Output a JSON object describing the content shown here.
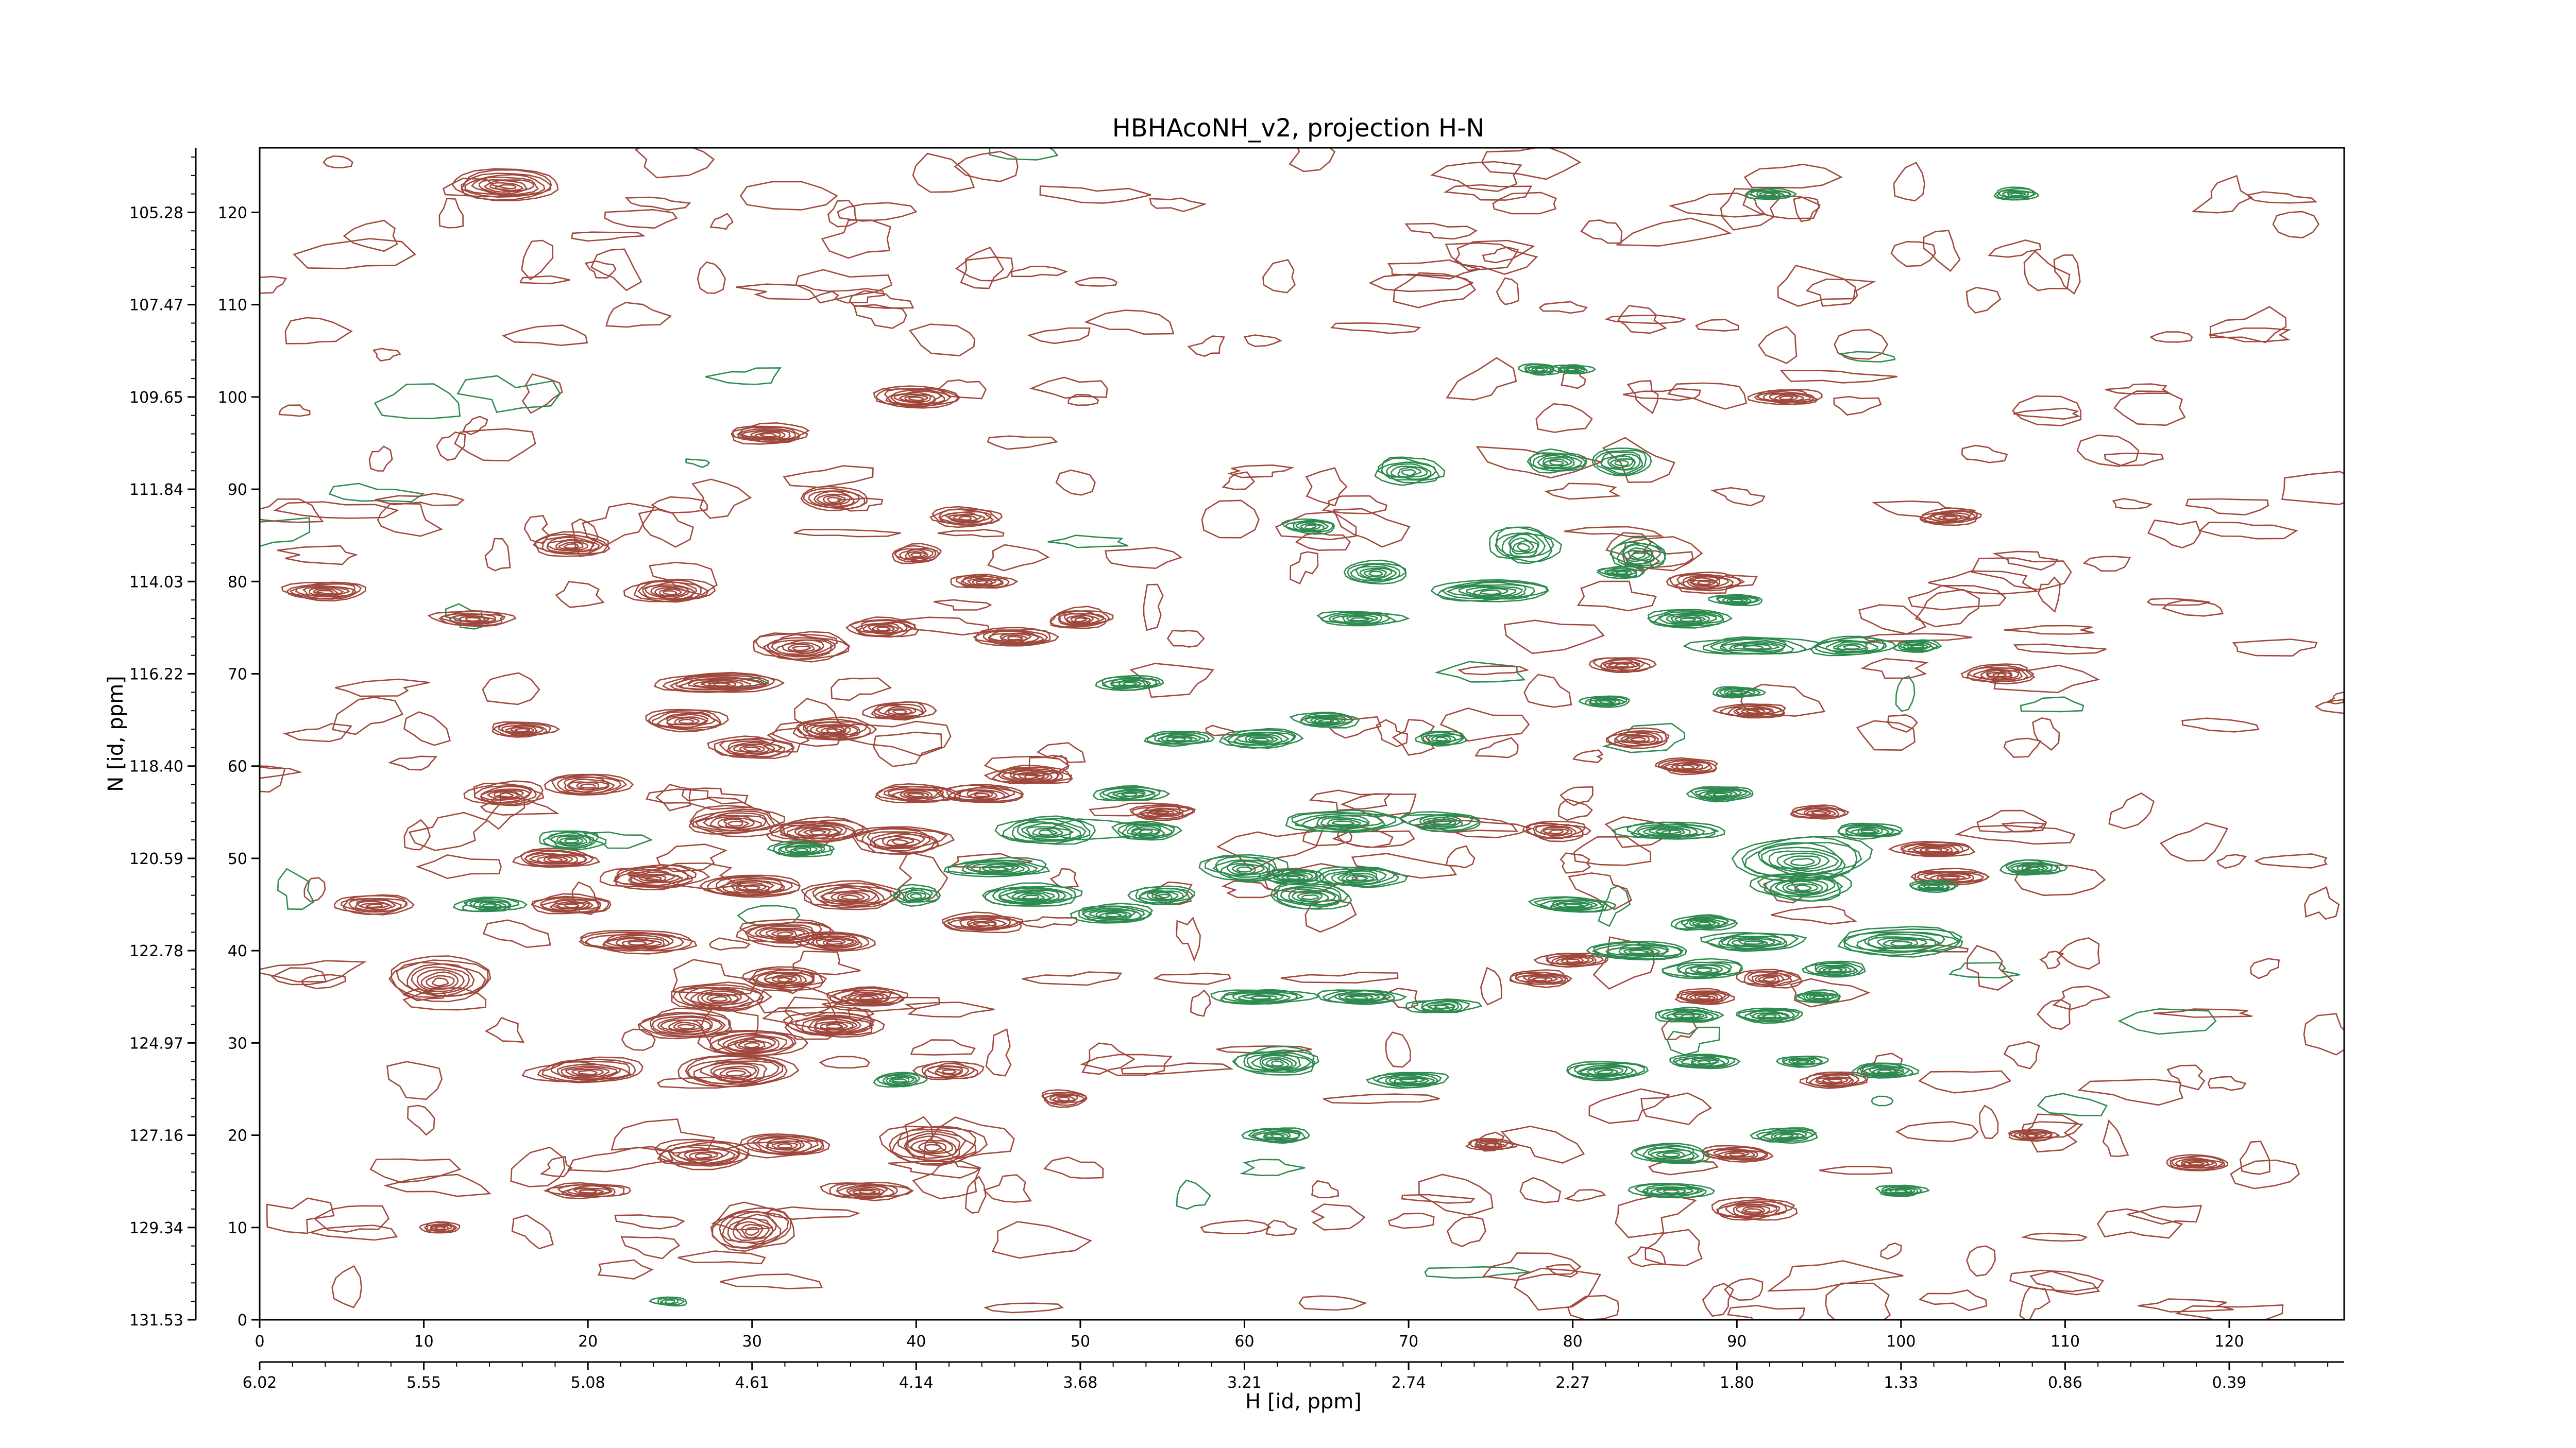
{
  "chart_data": {
    "type": "contour",
    "title": "HBHAcoNH_v2, projection H-N",
    "xlabel": "H [id, ppm]",
    "ylabel": "N [id, ppm]",
    "x_index_range": [
      0,
      127
    ],
    "y_index_range": [
      0,
      127
    ],
    "x_index_ticks": [
      "0",
      "10",
      "20",
      "30",
      "40",
      "50",
      "60",
      "70",
      "80",
      "90",
      "100",
      "110",
      "120"
    ],
    "y_index_ticks": [
      "0",
      "10",
      "20",
      "30",
      "40",
      "50",
      "60",
      "70",
      "80",
      "90",
      "100",
      "110",
      "120"
    ],
    "h_ppm_ticks": [
      "6.02",
      "5.55",
      "5.08",
      "4.61",
      "4.14",
      "3.68",
      "3.21",
      "2.74",
      "2.27",
      "1.80",
      "1.33",
      "0.86",
      "0.39"
    ],
    "n_ppm_ticks": [
      "131.53",
      "129.34",
      "127.16",
      "124.97",
      "122.78",
      "120.59",
      "118.40",
      "116.22",
      "114.03",
      "111.84",
      "109.65",
      "107.47",
      "105.28"
    ],
    "positive_color": "#a0483c",
    "negative_color": "#2e8b4f",
    "positive_peaks": [
      [
        15,
        123,
        3.5,
        1.6,
        9
      ],
      [
        40,
        100,
        2.5,
        1.2,
        9
      ],
      [
        31,
        96,
        2.5,
        1.0,
        8
      ],
      [
        35,
        89,
        2,
        1.3,
        7
      ],
      [
        19,
        84,
        2.5,
        1.2,
        8
      ],
      [
        43,
        87,
        2.2,
        1.0,
        8
      ],
      [
        40,
        83,
        1.5,
        1.0,
        7
      ],
      [
        44,
        80,
        1.8,
        0.8,
        7
      ],
      [
        4,
        79,
        2.5,
        1.0,
        8
      ],
      [
        25,
        79,
        2.5,
        1.3,
        9
      ],
      [
        13,
        76,
        2.5,
        0.8,
        7
      ],
      [
        33,
        73,
        3,
        1.5,
        9
      ],
      [
        28,
        69,
        4,
        1.0,
        9
      ],
      [
        38,
        75,
        2.2,
        1.0,
        8
      ],
      [
        46,
        74,
        2.5,
        1.0,
        8
      ],
      [
        50,
        76,
        2,
        1.0,
        8
      ],
      [
        16,
        64,
        2,
        0.8,
        7
      ],
      [
        26,
        65,
        2.5,
        1.2,
        8
      ],
      [
        30,
        62,
        2.5,
        1.2,
        8
      ],
      [
        35,
        64,
        2.5,
        1.2,
        8
      ],
      [
        39,
        66,
        2,
        1.0,
        7
      ],
      [
        15,
        57,
        2.5,
        1.2,
        8
      ],
      [
        20,
        58,
        2.5,
        1.2,
        8
      ],
      [
        29,
        54,
        3,
        1.5,
        9
      ],
      [
        34,
        53,
        3,
        1.3,
        9
      ],
      [
        39,
        52,
        3,
        1.5,
        9
      ],
      [
        40,
        57,
        2.5,
        1.0,
        8
      ],
      [
        44,
        57,
        2.5,
        1.0,
        8
      ],
      [
        47,
        59,
        2.5,
        1.0,
        8
      ],
      [
        18,
        50,
        2.5,
        1.0,
        8
      ],
      [
        7,
        45,
        2.5,
        1.0,
        8
      ],
      [
        24,
        48,
        3,
        1.3,
        9
      ],
      [
        19,
        45,
        2.5,
        1.0,
        8
      ],
      [
        23,
        41,
        3.5,
        1.2,
        9
      ],
      [
        30,
        47,
        3,
        1.2,
        9
      ],
      [
        36,
        46,
        3,
        1.5,
        9
      ],
      [
        44,
        43,
        2.5,
        1.0,
        8
      ],
      [
        32,
        42,
        3,
        1.3,
        9
      ],
      [
        35,
        41,
        2.5,
        1.0,
        8
      ],
      [
        11,
        37,
        3,
        2.5,
        9
      ],
      [
        28,
        35,
        3,
        1.5,
        9
      ],
      [
        32,
        37,
        2.5,
        1.2,
        8
      ],
      [
        37,
        35,
        2.5,
        1.0,
        8
      ],
      [
        26,
        32,
        3,
        1.5,
        9
      ],
      [
        30,
        30,
        3,
        1.5,
        9
      ],
      [
        35,
        32,
        3,
        1.3,
        9
      ],
      [
        29,
        27,
        3.5,
        1.8,
        9
      ],
      [
        20,
        27,
        3.5,
        1.3,
        9
      ],
      [
        42,
        27,
        2,
        1.0,
        7
      ],
      [
        49,
        24,
        1.5,
        0.8,
        6
      ],
      [
        27,
        18,
        3,
        1.5,
        9
      ],
      [
        32,
        19,
        2.5,
        1.2,
        8
      ],
      [
        41,
        19,
        3,
        2.2,
        9
      ],
      [
        20,
        14,
        2.5,
        0.8,
        7
      ],
      [
        37,
        14,
        2.5,
        1.0,
        8
      ],
      [
        30,
        10,
        2.5,
        2.5,
        9
      ],
      [
        11,
        10,
        1.2,
        0.6,
        6
      ],
      [
        55,
        55,
        2,
        0.8,
        7
      ],
      [
        79,
        53,
        2,
        1.0,
        7
      ],
      [
        84,
        63,
        2,
        1.0,
        7
      ],
      [
        87,
        60,
        2,
        0.8,
        7
      ],
      [
        91,
        66,
        2,
        0.8,
        7
      ],
      [
        83,
        71,
        2,
        0.8,
        7
      ],
      [
        88,
        80,
        2.2,
        1.0,
        8
      ],
      [
        106,
        70,
        2.2,
        1.0,
        8
      ],
      [
        102,
        51,
        2.5,
        0.8,
        7
      ],
      [
        103,
        48,
        2.5,
        0.8,
        7
      ],
      [
        95,
        55,
        1.8,
        0.7,
        6
      ],
      [
        93,
        100,
        2.2,
        0.8,
        7
      ],
      [
        103,
        87,
        2,
        0.8,
        7
      ],
      [
        96,
        26,
        2.2,
        0.8,
        7
      ],
      [
        90,
        18,
        2.2,
        0.8,
        7
      ],
      [
        91,
        12,
        2.5,
        1.2,
        8
      ],
      [
        80,
        39,
        2,
        0.8,
        7
      ],
      [
        78,
        37,
        2,
        0.8,
        7
      ],
      [
        75,
        19,
        1.5,
        0.6,
        6
      ],
      [
        92,
        37,
        1.8,
        1.0,
        7
      ],
      [
        88,
        35,
        1.8,
        0.8,
        7
      ],
      [
        118,
        17,
        2,
        0.8,
        7
      ],
      [
        108,
        20,
        1.5,
        0.6,
        6
      ]
    ],
    "negative_peaks": [
      [
        53,
        69,
        2,
        0.8,
        7
      ],
      [
        56,
        63,
        2,
        0.8,
        7
      ],
      [
        61,
        63,
        2.5,
        1.0,
        8
      ],
      [
        65,
        65,
        2,
        0.8,
        7
      ],
      [
        72,
        63,
        1.5,
        0.8,
        6
      ],
      [
        67,
        76,
        2.5,
        0.8,
        7
      ],
      [
        75,
        79,
        3.5,
        1.2,
        8
      ],
      [
        68,
        81,
        2,
        1.2,
        7
      ],
      [
        64,
        86,
        1.5,
        0.8,
        6
      ],
      [
        70,
        92,
        2,
        1.5,
        7
      ],
      [
        77,
        84,
        2,
        2.0,
        8
      ],
      [
        79,
        93,
        1.8,
        1.2,
        7
      ],
      [
        83,
        93,
        1.8,
        1.5,
        7
      ],
      [
        84,
        83,
        1.8,
        1.5,
        7
      ],
      [
        78,
        103,
        1.2,
        0.6,
        6
      ],
      [
        53,
        57,
        2.2,
        0.8,
        7
      ],
      [
        48,
        53,
        3,
        1.5,
        8
      ],
      [
        54,
        53,
        2,
        1.0,
        7
      ],
      [
        45,
        49,
        3,
        1.0,
        8
      ],
      [
        47,
        46,
        3,
        1.2,
        9
      ],
      [
        40,
        46,
        1.5,
        1.0,
        6
      ],
      [
        33,
        51,
        2,
        0.8,
        7
      ],
      [
        19,
        52,
        2,
        1.0,
        7
      ],
      [
        14,
        45,
        2,
        0.8,
        7
      ],
      [
        52,
        44,
        2.5,
        1.0,
        8
      ],
      [
        55,
        46,
        2,
        1.0,
        7
      ],
      [
        60,
        49,
        2.5,
        1.5,
        8
      ],
      [
        64,
        46,
        2.5,
        1.5,
        8
      ],
      [
        66,
        54,
        3.5,
        1.2,
        8
      ],
      [
        72,
        54,
        2.5,
        1.0,
        7
      ],
      [
        67,
        48,
        2.5,
        1.2,
        8
      ],
      [
        63,
        48,
        2,
        0.8,
        7
      ],
      [
        89,
        57,
        2,
        0.8,
        7
      ],
      [
        86,
        53,
        3,
        1.0,
        8
      ],
      [
        94,
        50,
        4,
        2.5,
        9
      ],
      [
        98,
        53,
        2,
        0.8,
        7
      ],
      [
        94,
        47,
        3,
        1.5,
        8
      ],
      [
        100,
        41,
        4,
        1.5,
        9
      ],
      [
        108,
        49,
        2,
        0.8,
        7
      ],
      [
        102,
        47,
        1.5,
        0.6,
        6
      ],
      [
        91,
        41,
        3,
        1.0,
        8
      ],
      [
        84,
        40,
        3,
        1.0,
        8
      ],
      [
        88,
        38,
        2.5,
        1.0,
        7
      ],
      [
        96,
        38,
        2,
        0.8,
        7
      ],
      [
        80,
        45,
        2.5,
        0.8,
        7
      ],
      [
        88,
        43,
        2,
        0.8,
        7
      ],
      [
        87,
        76,
        2.5,
        1.0,
        8
      ],
      [
        91,
        73,
        3.5,
        1.0,
        8
      ],
      [
        97,
        73,
        2.5,
        1.0,
        7
      ],
      [
        101,
        73,
        1.5,
        0.6,
        6
      ],
      [
        90,
        78,
        1.5,
        0.6,
        6
      ],
      [
        82,
        67,
        1.5,
        0.6,
        6
      ],
      [
        90,
        68,
        1.5,
        0.6,
        6
      ],
      [
        83,
        81,
        1.5,
        0.6,
        6
      ],
      [
        61,
        35,
        3,
        0.8,
        7
      ],
      [
        67,
        35,
        2.5,
        0.8,
        7
      ],
      [
        72,
        34,
        2,
        0.8,
        7
      ],
      [
        87,
        33,
        2,
        0.8,
        7
      ],
      [
        92,
        33,
        2,
        0.8,
        7
      ],
      [
        95,
        35,
        1.5,
        0.6,
        6
      ],
      [
        62,
        28,
        2.5,
        1.5,
        9
      ],
      [
        70,
        26,
        2.5,
        0.8,
        7
      ],
      [
        82,
        27,
        2.5,
        1.0,
        8
      ],
      [
        88,
        28,
        2,
        0.8,
        7
      ],
      [
        94,
        28,
        1.5,
        0.6,
        6
      ],
      [
        99,
        27,
        2,
        0.8,
        7
      ],
      [
        86,
        18,
        2.5,
        1.0,
        7
      ],
      [
        93,
        20,
        2,
        0.8,
        7
      ],
      [
        86,
        14,
        2.5,
        0.8,
        7
      ],
      [
        100,
        14,
        1.5,
        0.6,
        6
      ],
      [
        62,
        20,
        2,
        0.8,
        7
      ],
      [
        39,
        26,
        1.5,
        0.8,
        6
      ],
      [
        107,
        122,
        1.5,
        0.6,
        6
      ],
      [
        92,
        122,
        1.5,
        0.6,
        6
      ],
      [
        80,
        103,
        1.2,
        0.5,
        5
      ],
      [
        25,
        2,
        1,
        0.5,
        4
      ]
    ]
  }
}
